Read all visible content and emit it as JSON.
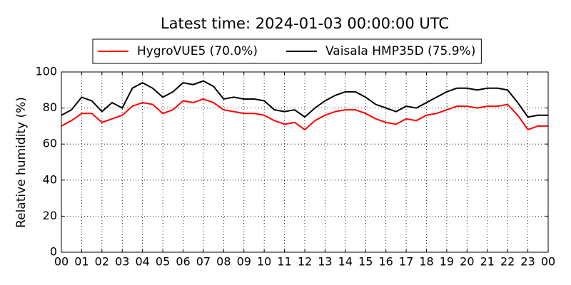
{
  "chart_data": {
    "type": "line",
    "title": "Latest time: 2024-01-03 00:00:00 UTC",
    "y_label": "Relative humidity (%)",
    "x": [
      0,
      0.5,
      1,
      1.5,
      2,
      2.5,
      3,
      3.5,
      4,
      4.5,
      5,
      5.5,
      6,
      6.5,
      7,
      7.5,
      8,
      8.5,
      9,
      9.5,
      10,
      10.5,
      11,
      11.5,
      12,
      12.5,
      13,
      13.5,
      14,
      14.5,
      15,
      15.5,
      16,
      16.5,
      17,
      17.5,
      18,
      18.5,
      19,
      19.5,
      20,
      20.5,
      21,
      21.5,
      22,
      22.5,
      23,
      23.5,
      24
    ],
    "series": [
      {
        "name": "HygroVUE5 (70.0%)",
        "color": "#ff0000",
        "values": [
          70,
          73,
          77,
          77,
          72,
          74,
          76,
          81,
          83,
          82,
          77,
          79,
          84,
          83,
          85,
          83,
          79,
          78,
          77,
          77,
          76,
          73,
          71,
          72,
          68,
          73,
          76,
          78,
          79,
          79,
          77,
          74,
          72,
          71,
          74,
          73,
          76,
          77,
          79,
          81,
          81,
          80,
          81,
          81,
          82,
          76,
          68,
          70,
          70
        ]
      },
      {
        "name": "Vaisala HMP35D (75.9%)",
        "color": "#000000",
        "values": [
          76,
          79,
          86,
          84,
          78,
          83,
          80,
          91,
          94,
          91,
          86,
          89,
          94,
          93,
          95,
          92,
          85,
          86,
          85,
          85,
          84,
          79,
          78,
          79,
          75,
          80,
          84,
          87,
          89,
          89,
          86,
          82,
          80,
          78,
          81,
          80,
          83,
          86,
          89,
          91,
          91,
          90,
          91,
          91,
          90,
          83,
          75,
          76,
          76
        ]
      }
    ],
    "xlim": [
      0,
      24
    ],
    "xticks": [
      {
        "value": 0,
        "label": "00"
      },
      {
        "value": 1,
        "label": "01"
      },
      {
        "value": 2,
        "label": "02"
      },
      {
        "value": 3,
        "label": "03"
      },
      {
        "value": 4,
        "label": "04"
      },
      {
        "value": 5,
        "label": "05"
      },
      {
        "value": 6,
        "label": "06"
      },
      {
        "value": 7,
        "label": "07"
      },
      {
        "value": 8,
        "label": "08"
      },
      {
        "value": 9,
        "label": "09"
      },
      {
        "value": 10,
        "label": "10"
      },
      {
        "value": 11,
        "label": "11"
      },
      {
        "value": 12,
        "label": "12"
      },
      {
        "value": 13,
        "label": "13"
      },
      {
        "value": 14,
        "label": "14"
      },
      {
        "value": 15,
        "label": "15"
      },
      {
        "value": 16,
        "label": "16"
      },
      {
        "value": 17,
        "label": "17"
      },
      {
        "value": 18,
        "label": "18"
      },
      {
        "value": 19,
        "label": "19"
      },
      {
        "value": 20,
        "label": "20"
      },
      {
        "value": 21,
        "label": "21"
      },
      {
        "value": 22,
        "label": "22"
      },
      {
        "value": 23,
        "label": "23"
      },
      {
        "value": 24,
        "label": "00"
      }
    ],
    "ylim": [
      0,
      100
    ],
    "yticks": [
      0,
      20,
      40,
      60,
      80,
      100
    ],
    "grid": true,
    "legend": "top"
  }
}
